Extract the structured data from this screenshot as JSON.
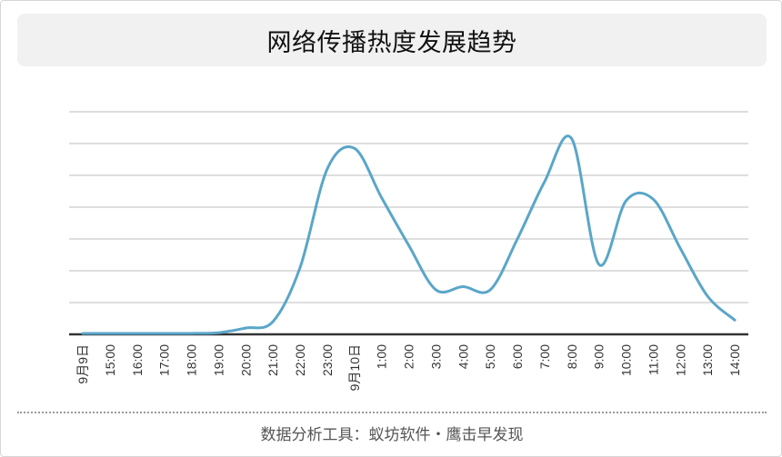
{
  "chart_data": {
    "type": "line",
    "title": "网络传播热度发展趋势",
    "xlabel": "",
    "ylabel": "",
    "categories": [
      "9月9日",
      "15:00",
      "16:00",
      "17:00",
      "18:00",
      "19:00",
      "20:00",
      "21:00",
      "22:00",
      "23:00",
      "9月10日",
      "1:00",
      "2:00",
      "3:00",
      "4:00",
      "5:00",
      "6:00",
      "7:00",
      "8:00",
      "9:00",
      "10:00",
      "11:00",
      "12:00",
      "13:00",
      "14:00"
    ],
    "series": [
      {
        "values": [
          0.03,
          0.03,
          0.03,
          0.03,
          0.03,
          0.05,
          0.2,
          0.4,
          2.1,
          5.2,
          5.85,
          4.3,
          2.8,
          1.4,
          1.5,
          1.4,
          3.0,
          4.8,
          6.15,
          2.2,
          4.2,
          4.25,
          2.7,
          1.2,
          0.45
        ]
      }
    ],
    "ylim": [
      0,
      7
    ],
    "y_tick_labels": "none",
    "grid": true,
    "legend": "none",
    "colors": {
      "line": "#5aa6c8",
      "grid": "#c9c9c9",
      "axis": "#333333"
    }
  },
  "footer": {
    "text": "数据分析工具：蚁坊软件・鹰击早发现"
  }
}
